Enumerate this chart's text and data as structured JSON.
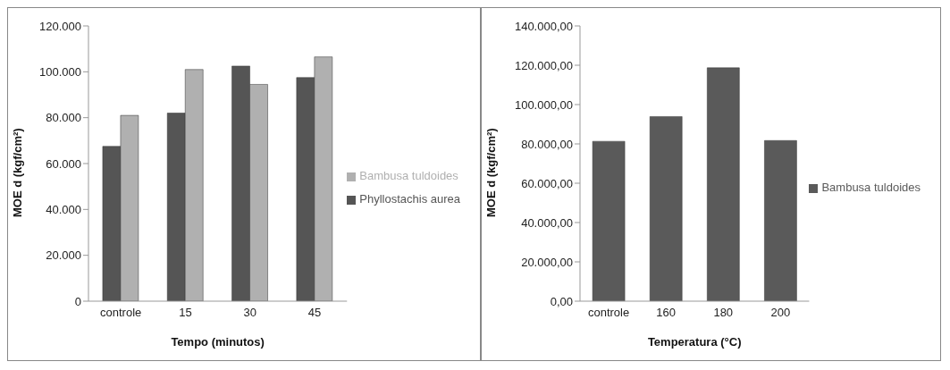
{
  "chart_data": [
    {
      "type": "bar",
      "xlabel": "Tempo (minutos)",
      "ylabel": "MOE d (kgf/cm²)",
      "categories": [
        "controle",
        "15",
        "30",
        "45"
      ],
      "series": [
        {
          "name": "Phyllostachis aurea",
          "color": "#555555",
          "values": [
            67500,
            82000,
            102500,
            97500
          ]
        },
        {
          "name": "Bambusa tuldoides",
          "color": "#b0b0b0",
          "values": [
            81000,
            101000,
            94500,
            106500
          ]
        }
      ],
      "ylim": [
        0,
        120000
      ],
      "yticks": [
        0,
        {
          "value": 20000,
          "label": "20.000"
        },
        {
          "value": 40000,
          "label": "40.000"
        },
        {
          "value": 60000,
          "label": "60.000"
        },
        {
          "value": 80000,
          "label": "80.000"
        },
        {
          "value": 100000,
          "label": "100.000"
        },
        {
          "value": 120000,
          "label": "120.000"
        }
      ],
      "grid": false,
      "legend": "right"
    },
    {
      "type": "bar",
      "xlabel": "Temperatura (°C)",
      "ylabel": "MOE d (kgf/cm²)",
      "categories": [
        "controle",
        "160",
        "180",
        "200"
      ],
      "series": [
        {
          "name": "Bambusa tuldoides",
          "color": "#5a5a5a",
          "values": [
            81300,
            93900,
            118700,
            81700
          ]
        }
      ],
      "ylim": [
        0,
        140000
      ],
      "yticks": [
        {
          "value": 0,
          "label": "0,00"
        },
        {
          "value": 20000,
          "label": "20.000,00"
        },
        {
          "value": 40000,
          "label": "40.000,00"
        },
        {
          "value": 60000,
          "label": "60.000,00"
        },
        {
          "value": 80000,
          "label": "80.000,00"
        },
        {
          "value": 100000,
          "label": "100.000,00"
        },
        {
          "value": 120000,
          "label": "120.000,00"
        },
        {
          "value": 140000,
          "label": "140.000,00"
        }
      ],
      "grid": false,
      "legend": "right"
    }
  ]
}
